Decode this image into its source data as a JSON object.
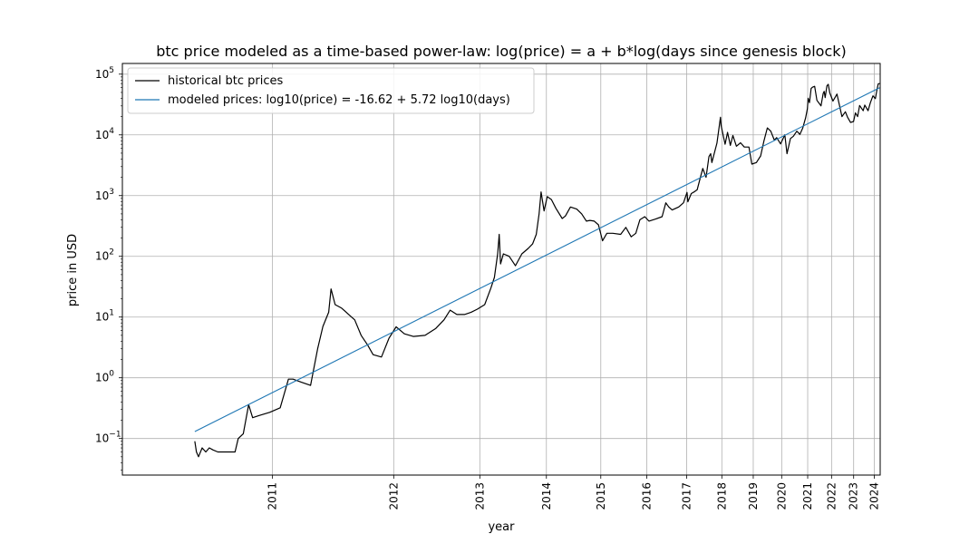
{
  "chart_data": {
    "type": "line",
    "title": "btc price modeled as a time-based power-law: log(price) = a + b*log(days since genesis block)",
    "xlabel": "year",
    "ylabel": "price in USD",
    "x_scale": "log",
    "y_scale": "log",
    "xlim": [
      "2010-03-19",
      "2024-04-21"
    ],
    "ylim": [
      0.025,
      150000
    ],
    "grid": true,
    "legend_position": "top-left",
    "x_tick_labels": [
      {
        "date": "2011-01-01",
        "label": "2011"
      },
      {
        "date": "2012-01-01",
        "label": "2012"
      },
      {
        "date": "2013-01-01",
        "label": "2013"
      },
      {
        "date": "2014-01-01",
        "label": "2014"
      },
      {
        "date": "2015-01-01",
        "label": "2015"
      },
      {
        "date": "2016-01-01",
        "label": "2016"
      },
      {
        "date": "2017-01-01",
        "label": "2017"
      },
      {
        "date": "2018-01-01",
        "label": "2018"
      },
      {
        "date": "2019-01-01",
        "label": "2019"
      },
      {
        "date": "2020-01-01",
        "label": "2020"
      },
      {
        "date": "2021-01-01",
        "label": "2021"
      },
      {
        "date": "2022-01-01",
        "label": "2022"
      },
      {
        "date": "2023-01-01",
        "label": "2023"
      },
      {
        "date": "2024-01-01",
        "label": "2024"
      }
    ],
    "y_tick_labels": [
      {
        "value": 0.1,
        "base": "10",
        "exp": "−1"
      },
      {
        "value": 1,
        "base": "10",
        "exp": "0"
      },
      {
        "value": 10,
        "base": "10",
        "exp": "1"
      },
      {
        "value": 100,
        "base": "10",
        "exp": "2"
      },
      {
        "value": 1000,
        "base": "10",
        "exp": "3"
      },
      {
        "value": 10000,
        "base": "10",
        "exp": "4"
      },
      {
        "value": 100000,
        "base": "10",
        "exp": "5"
      }
    ],
    "series": [
      {
        "name": "historical btc prices",
        "color": "#000000",
        "x": [
          "2010-07-18",
          "2010-07-21",
          "2010-07-25",
          "2010-08-01",
          "2010-08-08",
          "2010-08-15",
          "2010-08-22",
          "2010-09-01",
          "2010-09-20",
          "2010-10-07",
          "2010-10-14",
          "2010-10-25",
          "2010-11-06",
          "2010-11-15",
          "2010-12-01",
          "2010-12-25",
          "2011-01-20",
          "2011-02-10",
          "2011-02-22",
          "2011-03-15",
          "2011-04-10",
          "2011-04-30",
          "2011-05-15",
          "2011-06-01",
          "2011-06-08",
          "2011-06-20",
          "2011-07-10",
          "2011-08-01",
          "2011-08-20",
          "2011-09-10",
          "2011-10-01",
          "2011-10-20",
          "2011-11-18",
          "2011-12-15",
          "2012-01-10",
          "2012-02-10",
          "2012-03-15",
          "2012-05-01",
          "2012-06-15",
          "2012-07-20",
          "2012-08-16",
          "2012-09-15",
          "2012-10-20",
          "2012-11-20",
          "2012-12-20",
          "2013-01-25",
          "2013-02-25",
          "2013-03-15",
          "2013-04-01",
          "2013-04-09",
          "2013-04-16",
          "2013-05-01",
          "2013-06-01",
          "2013-07-05",
          "2013-08-10",
          "2013-09-15",
          "2013-10-10",
          "2013-11-01",
          "2013-11-18",
          "2013-11-30",
          "2013-12-18",
          "2014-01-06",
          "2014-02-01",
          "2014-03-01",
          "2014-04-10",
          "2014-05-01",
          "2014-06-03",
          "2014-07-15",
          "2014-08-18",
          "2014-09-20",
          "2014-10-15",
          "2014-11-15",
          "2014-12-15",
          "2015-01-14",
          "2015-02-15",
          "2015-04-01",
          "2015-06-01",
          "2015-07-12",
          "2015-08-24",
          "2015-10-01",
          "2015-11-04",
          "2015-12-15",
          "2016-01-20",
          "2016-03-15",
          "2016-05-15",
          "2016-06-17",
          "2016-07-15",
          "2016-08-15",
          "2016-10-15",
          "2016-12-01",
          "2017-01-04",
          "2017-01-12",
          "2017-02-15",
          "2017-03-15",
          "2017-04-15",
          "2017-05-25",
          "2017-06-12",
          "2017-07-16",
          "2017-08-15",
          "2017-09-02",
          "2017-09-15",
          "2017-11-08",
          "2017-12-17",
          "2017-12-25",
          "2018-02-06",
          "2018-03-05",
          "2018-04-06",
          "2018-05-05",
          "2018-06-15",
          "2018-08-01",
          "2018-09-15",
          "2018-11-10",
          "2018-12-15",
          "2019-02-08",
          "2019-04-03",
          "2019-05-15",
          "2019-06-26",
          "2019-08-10",
          "2019-09-25",
          "2019-10-26",
          "2019-12-17",
          "2020-02-13",
          "2020-03-13",
          "2020-04-30",
          "2020-06-10",
          "2020-07-28",
          "2020-09-10",
          "2020-10-22",
          "2020-12-01",
          "2020-12-28",
          "2021-01-08",
          "2021-01-27",
          "2021-02-21",
          "2021-03-13",
          "2021-04-14",
          "2021-05-19",
          "2021-06-22",
          "2021-07-20",
          "2021-08-23",
          "2021-09-07",
          "2021-09-22",
          "2021-10-20",
          "2021-11-10",
          "2021-12-04",
          "2022-01-24",
          "2022-03-29",
          "2022-05-10",
          "2022-06-18",
          "2022-08-15",
          "2022-09-20",
          "2022-11-09",
          "2022-12-31",
          "2023-02-01",
          "2023-03-10",
          "2023-04-14",
          "2023-06-15",
          "2023-07-14",
          "2023-09-11",
          "2023-10-24",
          "2023-12-08",
          "2024-01-23",
          "2024-02-15",
          "2024-03-14",
          "2024-04-10"
        ],
        "y": [
          0.09,
          0.06,
          0.05,
          0.07,
          0.06,
          0.07,
          0.065,
          0.06,
          0.06,
          0.06,
          0.1,
          0.12,
          0.36,
          0.22,
          0.24,
          0.27,
          0.32,
          0.95,
          0.95,
          0.85,
          0.75,
          3.0,
          7.0,
          12,
          29,
          16,
          14,
          11,
          9,
          5,
          3.5,
          2.4,
          2.2,
          4.5,
          6.9,
          5.3,
          4.8,
          5.0,
          6.5,
          9.0,
          13,
          11,
          11,
          12,
          13.5,
          16,
          30,
          45,
          110,
          230,
          75,
          110,
          100,
          70,
          110,
          135,
          160,
          230,
          500,
          1150,
          560,
          960,
          860,
          620,
          420,
          460,
          650,
          600,
          500,
          380,
          390,
          380,
          330,
          180,
          240,
          240,
          230,
          300,
          210,
          240,
          400,
          450,
          380,
          410,
          450,
          760,
          650,
          580,
          650,
          760,
          1130,
          790,
          1080,
          1150,
          1250,
          2200,
          2800,
          2000,
          4400,
          4900,
          3500,
          7300,
          19500,
          14000,
          7000,
          11000,
          6700,
          9800,
          6500,
          7400,
          6300,
          6300,
          3300,
          3500,
          4500,
          8000,
          13000,
          11500,
          8200,
          9000,
          7100,
          10000,
          4900,
          8700,
          9500,
          11500,
          10200,
          13000,
          19000,
          27000,
          40000,
          34000,
          58000,
          61000,
          63000,
          37000,
          33000,
          30000,
          48000,
          52000,
          41000,
          64000,
          68000,
          49000,
          36000,
          47000,
          30000,
          20000,
          24000,
          19500,
          16000,
          16600,
          23000,
          20000,
          30500,
          25000,
          31000,
          25000,
          34000,
          44000,
          39500,
          52000,
          69000,
          70500
        ]
      },
      {
        "name": "modeled prices: log10(price) = -16.62 + 5.72 log10(days)",
        "color": "#1f77b4",
        "formula": {
          "a": -16.62,
          "b": 5.72
        },
        "x": [
          "2010-07-18",
          "2024-04-10"
        ],
        "y": [
          0.13,
          60000
        ]
      }
    ]
  }
}
